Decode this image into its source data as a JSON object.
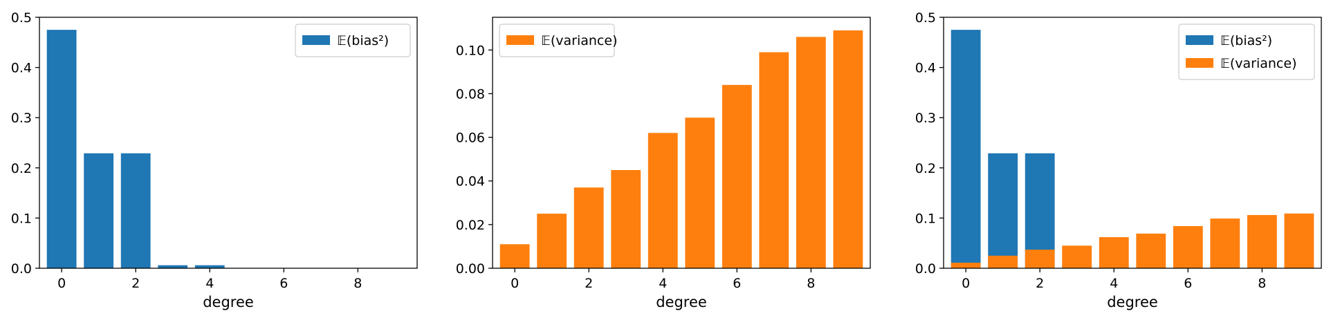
{
  "chart_data": [
    {
      "type": "bar",
      "x": [
        0,
        1,
        2,
        3,
        4,
        5,
        6,
        7,
        8,
        9
      ],
      "series": [
        {
          "name": "𝔼(bias²)",
          "values": [
            0.475,
            0.229,
            0.229,
            0.006,
            0.006,
            0.0004,
            0.0004,
            0.0004,
            0.0004,
            0.0004
          ],
          "color": "#1f77b4"
        }
      ],
      "xlabel": "degree",
      "ylabel": "",
      "xlim": [
        -0.6,
        9.6
      ],
      "ylim": [
        0,
        0.5
      ],
      "xticks": [
        "0",
        "2",
        "4",
        "6",
        "8"
      ],
      "yticks": [
        "0.0",
        "0.1",
        "0.2",
        "0.3",
        "0.4",
        "0.5"
      ],
      "legend": "top-right",
      "grid": false
    },
    {
      "type": "bar",
      "x": [
        0,
        1,
        2,
        3,
        4,
        5,
        6,
        7,
        8,
        9
      ],
      "series": [
        {
          "name": "𝔼(variance)",
          "values": [
            0.011,
            0.025,
            0.037,
            0.045,
            0.062,
            0.069,
            0.084,
            0.099,
            0.106,
            0.109
          ],
          "color": "#ff7f0e"
        }
      ],
      "xlabel": "degree",
      "ylabel": "",
      "xlim": [
        -0.6,
        9.6
      ],
      "ylim": [
        0,
        0.115
      ],
      "xticks": [
        "0",
        "2",
        "4",
        "6",
        "8"
      ],
      "yticks": [
        "0.00",
        "0.02",
        "0.04",
        "0.06",
        "0.08",
        "0.10"
      ],
      "legend": "top-left",
      "grid": false
    },
    {
      "type": "bar",
      "x": [
        0,
        1,
        2,
        3,
        4,
        5,
        6,
        7,
        8,
        9
      ],
      "series": [
        {
          "name": "𝔼(bias²)",
          "values": [
            0.475,
            0.229,
            0.229,
            0.006,
            0.006,
            0.0004,
            0.0004,
            0.0004,
            0.0004,
            0.0004
          ],
          "color": "#1f77b4"
        },
        {
          "name": "𝔼(variance)",
          "values": [
            0.011,
            0.025,
            0.037,
            0.045,
            0.062,
            0.069,
            0.084,
            0.099,
            0.106,
            0.109
          ],
          "color": "#ff7f0e"
        }
      ],
      "xlabel": "degree",
      "ylabel": "",
      "xlim": [
        -0.6,
        9.6
      ],
      "ylim": [
        0,
        0.5
      ],
      "xticks": [
        "0",
        "2",
        "4",
        "6",
        "8"
      ],
      "yticks": [
        "0.0",
        "0.1",
        "0.2",
        "0.3",
        "0.4",
        "0.5"
      ],
      "legend": "top-right",
      "grid": false
    }
  ]
}
